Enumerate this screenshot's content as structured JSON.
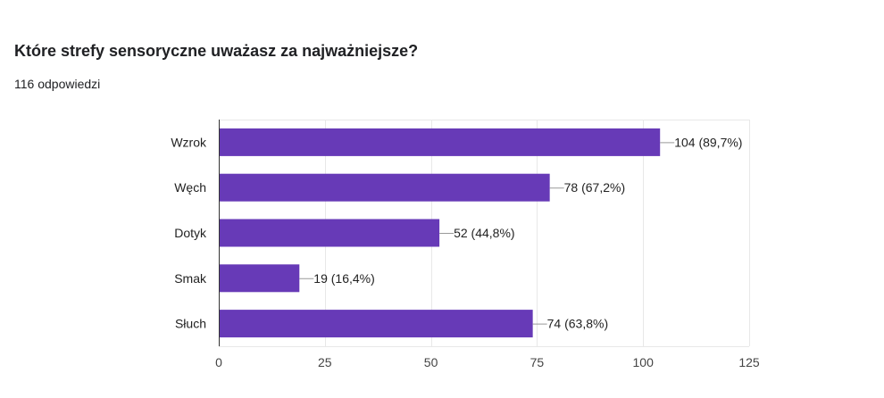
{
  "header": {
    "title": "Które strefy sensoryczne uważasz za najważniejsze?",
    "responses": "116 odpowiedzi"
  },
  "colors": {
    "bar": "#673AB7",
    "grid": "#e8e8e8",
    "axis": "#333333",
    "leader": "#999999"
  },
  "chart_data": {
    "type": "bar",
    "orientation": "horizontal",
    "categories": [
      "Wzrok",
      "Węch",
      "Dotyk",
      "Smak",
      "Słuch"
    ],
    "values": [
      104,
      78,
      52,
      19,
      74
    ],
    "data_labels": [
      "104 (89,7%)",
      "78 (67,2%)",
      "52 (44,8%)",
      "19 (16,4%)",
      "74 (63,8%)"
    ],
    "xlim": [
      0,
      125
    ],
    "xticks": [
      0,
      25,
      50,
      75,
      100,
      125
    ],
    "grid": true
  }
}
